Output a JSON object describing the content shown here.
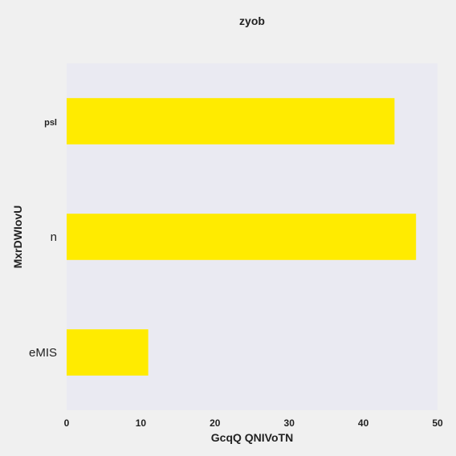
{
  "colors": {
    "page_background": "#f0f0f0",
    "plot_background": "#eaeaf2",
    "bar": "#ffeb00",
    "text": "#222222"
  },
  "chart_data": {
    "type": "bar",
    "orientation": "horizontal",
    "title": "zyob",
    "xlabel": "GcqQ QNIVoTN",
    "ylabel": "MxrDWIovU",
    "categories": [
      "psl",
      "n",
      "eMIS"
    ],
    "values": [
      44.2,
      47.1,
      11.0
    ],
    "xlim": [
      0,
      50
    ],
    "xticks": [
      0,
      10,
      20,
      30,
      40,
      50
    ],
    "grid": false,
    "legend": "none"
  }
}
